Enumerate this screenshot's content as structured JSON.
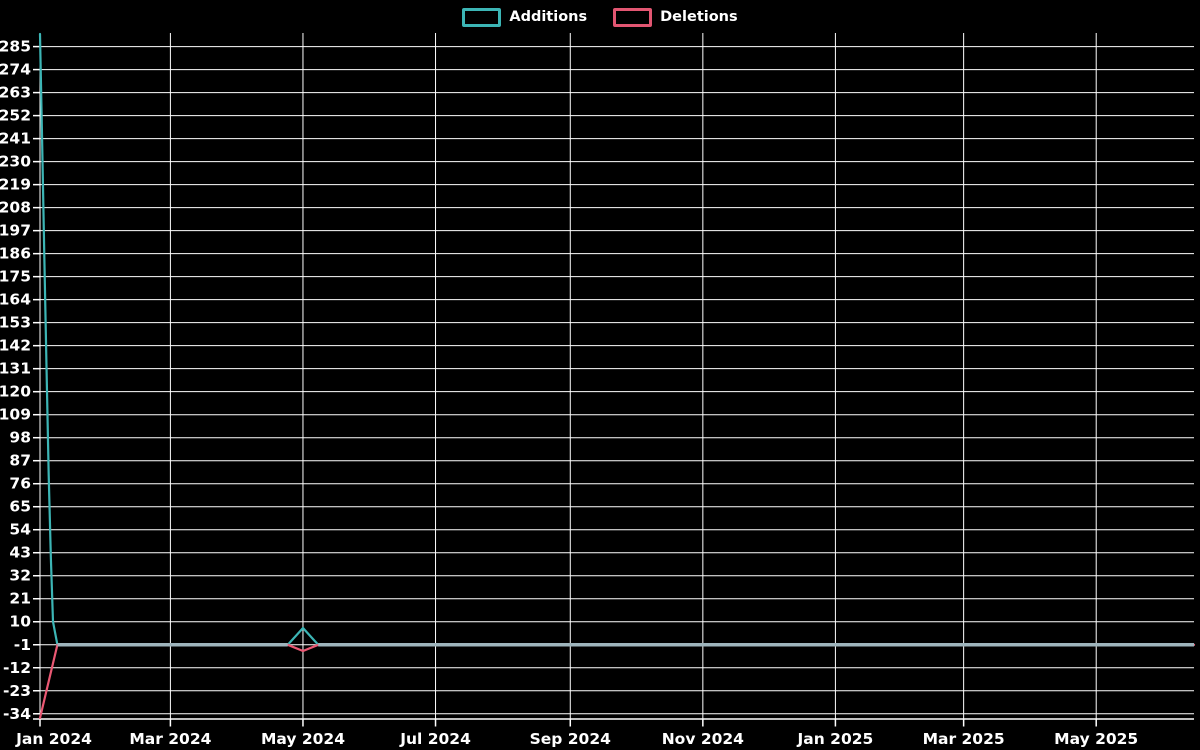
{
  "legend": {
    "items": [
      {
        "id": "additions",
        "label": "Additions",
        "color": "#3cb5b5"
      },
      {
        "id": "deletions",
        "label": "Deletions",
        "color": "#e25672"
      }
    ]
  },
  "chart_data": {
    "type": "line",
    "title": "",
    "xlabel": "",
    "ylabel": "",
    "background_color": "#000000",
    "grid_color": "#ffffff",
    "grid_on": true,
    "legend_position": "top-center",
    "x_axis": {
      "kind": "time",
      "start_date": "2024-01-01",
      "end_date": "2025-06-15",
      "total_days": 531,
      "ticks": [
        {
          "label": "Jan 2024",
          "day": 0
        },
        {
          "label": "Mar 2024",
          "day": 60
        },
        {
          "label": "May 2024",
          "day": 121
        },
        {
          "label": "Jul 2024",
          "day": 182
        },
        {
          "label": "Sep 2024",
          "day": 244
        },
        {
          "label": "Nov 2024",
          "day": 305
        },
        {
          "label": "Jan 2025",
          "day": 366
        },
        {
          "label": "Mar 2025",
          "day": 425
        },
        {
          "label": "May 2025",
          "day": 486
        }
      ]
    },
    "y_axis": {
      "min": -36.5,
      "max": 291.5,
      "tick_step": 11,
      "ticks": [
        -34,
        -23,
        -12,
        -1,
        10,
        21,
        32,
        43,
        54,
        65,
        76,
        87,
        98,
        109,
        120,
        131,
        142,
        153,
        164,
        175,
        186,
        197,
        208,
        219,
        230,
        241,
        252,
        263,
        274,
        285
      ]
    },
    "series": [
      {
        "name": "Additions",
        "color": "#3cb5b5",
        "points": [
          {
            "date": "2024-01-01",
            "day": 0,
            "value": 291
          },
          {
            "date": "2024-01-02",
            "day": 1,
            "value": 238
          },
          {
            "date": "2024-01-03",
            "day": 2,
            "value": 185
          },
          {
            "date": "2024-01-04",
            "day": 3,
            "value": 132
          },
          {
            "date": "2024-01-05",
            "day": 4,
            "value": 80
          },
          {
            "date": "2024-01-06",
            "day": 5,
            "value": 40
          },
          {
            "date": "2024-01-07",
            "day": 6,
            "value": 10
          },
          {
            "date": "2024-01-09",
            "day": 8,
            "value": -1
          },
          {
            "date": "2024-04-24",
            "day": 114,
            "value": -1
          },
          {
            "date": "2024-05-01",
            "day": 121,
            "value": 7
          },
          {
            "date": "2024-05-08",
            "day": 128,
            "value": -1
          },
          {
            "date": "2025-06-15",
            "day": 531,
            "value": -1
          }
        ]
      },
      {
        "name": "Deletions",
        "color": "#ea5873",
        "points": [
          {
            "date": "2024-01-01",
            "day": 0,
            "value": -36
          },
          {
            "date": "2024-01-09",
            "day": 8,
            "value": -1
          },
          {
            "date": "2024-04-24",
            "day": 114,
            "value": -1
          },
          {
            "date": "2024-05-01",
            "day": 121,
            "value": -4
          },
          {
            "date": "2024-05-08",
            "day": 128,
            "value": -1
          },
          {
            "date": "2025-06-15",
            "day": 531,
            "value": -1
          }
        ]
      }
    ],
    "overlap_line": {
      "color": "#9eb4bc",
      "value": -1,
      "segments": [
        {
          "from_day": 8,
          "to_day": 114
        },
        {
          "from_day": 128,
          "to_day": 531
        }
      ]
    }
  }
}
